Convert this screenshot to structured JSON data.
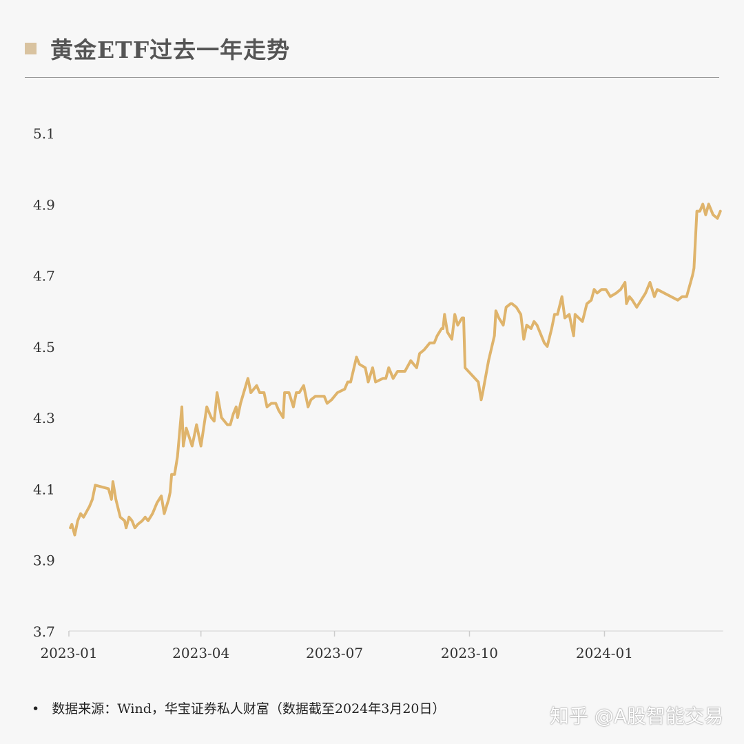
{
  "title": "黄金ETF过去一年走势",
  "footnote": "数据来源：Wind，华宝证券私人财富（数据截至2024年3月20日）",
  "watermark": "知乎 @A股智能交易",
  "colors": {
    "line": "#dfb46c",
    "title_mark": "#d9c3a0",
    "background": "#f7f7f7"
  },
  "chart_data": {
    "type": "line",
    "title": "黄金ETF过去一年走势",
    "xlabel": "",
    "ylabel": "",
    "ylim": [
      3.7,
      5.1
    ],
    "yticks": [
      "3.7",
      "3.9",
      "4.1",
      "4.3",
      "4.5",
      "4.7",
      "4.9",
      "5.1"
    ],
    "xticks": [
      "2023-01",
      "2023-04",
      "2023-07",
      "2023-10",
      "2024-01"
    ],
    "xlim": [
      "2023-01-01",
      "2024-03-20"
    ],
    "grid": false,
    "series": [
      {
        "x": [
          "2023-01-02",
          "2023-01-03",
          "2023-01-05",
          "2023-01-07",
          "2023-01-09",
          "2023-01-11",
          "2023-01-15",
          "2023-01-17",
          "2023-01-19",
          "2023-01-28",
          "2023-01-30",
          "2023-01-31",
          "2023-02-02",
          "2023-02-05",
          "2023-02-08",
          "2023-02-09",
          "2023-02-11",
          "2023-02-13",
          "2023-02-15",
          "2023-02-17",
          "2023-02-20",
          "2023-02-22",
          "2023-02-24",
          "2023-02-27",
          "2023-03-02",
          "2023-03-05",
          "2023-03-07",
          "2023-03-10",
          "2023-03-11",
          "2023-03-12",
          "2023-03-14",
          "2023-03-16",
          "2023-03-19",
          "2023-03-20",
          "2023-03-22",
          "2023-03-26",
          "2023-03-29",
          "2023-04-01",
          "2023-04-05",
          "2023-04-08",
          "2023-04-10",
          "2023-04-12",
          "2023-04-15",
          "2023-04-19",
          "2023-04-21",
          "2023-04-23",
          "2023-04-25",
          "2023-04-26",
          "2023-04-28",
          "2023-05-03",
          "2023-05-05",
          "2023-05-09",
          "2023-05-11",
          "2023-05-14",
          "2023-05-16",
          "2023-05-19",
          "2023-05-22",
          "2023-05-24",
          "2023-05-27",
          "2023-05-28",
          "2023-05-31",
          "2023-06-03",
          "2023-06-05",
          "2023-06-07",
          "2023-06-10",
          "2023-06-13",
          "2023-06-15",
          "2023-06-18",
          "2023-06-24",
          "2023-06-26",
          "2023-06-29",
          "2023-07-03",
          "2023-07-08",
          "2023-07-10",
          "2023-07-12",
          "2023-07-16",
          "2023-07-18",
          "2023-07-22",
          "2023-07-24",
          "2023-07-27",
          "2023-07-29",
          "2023-08-03",
          "2023-08-05",
          "2023-08-07",
          "2023-08-10",
          "2023-08-13",
          "2023-08-18",
          "2023-08-22",
          "2023-08-24",
          "2023-08-26",
          "2023-08-28",
          "2023-08-31",
          "2023-09-04",
          "2023-09-07",
          "2023-09-09",
          "2023-09-12",
          "2023-09-13",
          "2023-09-14",
          "2023-09-16",
          "2023-09-19",
          "2023-09-21",
          "2023-09-23",
          "2023-09-26",
          "2023-09-27",
          "2023-09-28",
          "2023-10-07",
          "2023-10-09",
          "2023-10-10",
          "2023-10-14",
          "2023-10-18",
          "2023-10-19",
          "2023-10-21",
          "2023-10-24",
          "2023-10-26",
          "2023-10-29",
          "2023-10-30",
          "2023-11-02",
          "2023-11-05",
          "2023-11-07",
          "2023-11-09",
          "2023-11-12",
          "2023-11-14",
          "2023-11-16",
          "2023-11-21",
          "2023-11-23",
          "2023-11-26",
          "2023-11-28",
          "2023-11-30",
          "2023-12-03",
          "2023-12-05",
          "2023-12-08",
          "2023-12-11",
          "2023-12-12",
          "2023-12-17",
          "2023-12-20",
          "2023-12-23",
          "2023-12-25",
          "2023-12-27",
          "2023-12-30",
          "2024-01-02",
          "2024-01-05",
          "2024-01-09",
          "2024-01-12",
          "2024-01-15",
          "2024-01-16",
          "2024-01-18",
          "2024-01-20",
          "2024-01-23",
          "2024-01-26",
          "2024-01-29",
          "2024-02-01",
          "2024-02-04",
          "2024-02-06",
          "2024-02-20",
          "2024-02-23",
          "2024-02-26",
          "2024-03-01",
          "2024-03-02",
          "2024-03-04",
          "2024-03-06",
          "2024-03-08",
          "2024-03-10",
          "2024-03-12",
          "2024-03-15",
          "2024-03-18",
          "2024-03-20"
        ],
        "y": [
          3.99,
          4.0,
          3.97,
          4.01,
          4.03,
          4.02,
          4.05,
          4.07,
          4.11,
          4.1,
          4.07,
          4.12,
          4.07,
          4.02,
          4.01,
          3.99,
          4.02,
          4.01,
          3.99,
          4.0,
          4.01,
          4.02,
          4.01,
          4.03,
          4.06,
          4.08,
          4.03,
          4.07,
          4.09,
          4.14,
          4.14,
          4.19,
          4.33,
          4.22,
          4.27,
          4.22,
          4.28,
          4.22,
          4.33,
          4.3,
          4.29,
          4.37,
          4.3,
          4.28,
          4.28,
          4.31,
          4.33,
          4.3,
          4.34,
          4.41,
          4.37,
          4.39,
          4.37,
          4.37,
          4.33,
          4.34,
          4.34,
          4.32,
          4.3,
          4.37,
          4.37,
          4.33,
          4.37,
          4.37,
          4.39,
          4.33,
          4.35,
          4.36,
          4.36,
          4.34,
          4.35,
          4.37,
          4.38,
          4.4,
          4.4,
          4.47,
          4.45,
          4.44,
          4.4,
          4.44,
          4.4,
          4.41,
          4.41,
          4.44,
          4.41,
          4.43,
          4.43,
          4.46,
          4.45,
          4.44,
          4.48,
          4.49,
          4.51,
          4.51,
          4.53,
          4.55,
          4.55,
          4.59,
          4.54,
          4.52,
          4.59,
          4.56,
          4.58,
          4.58,
          4.44,
          4.4,
          4.35,
          4.37,
          4.46,
          4.53,
          4.6,
          4.58,
          4.56,
          4.61,
          4.62,
          4.62,
          4.61,
          4.59,
          4.52,
          4.56,
          4.55,
          4.57,
          4.56,
          4.51,
          4.5,
          4.55,
          4.59,
          4.59,
          4.64,
          4.58,
          4.59,
          4.53,
          4.59,
          4.57,
          4.62,
          4.63,
          4.66,
          4.65,
          4.66,
          4.66,
          4.64,
          4.65,
          4.66,
          4.68,
          4.62,
          4.64,
          4.63,
          4.61,
          4.63,
          4.65,
          4.68,
          4.64,
          4.66,
          4.63,
          4.64,
          4.64,
          4.7,
          4.72,
          4.88,
          4.88,
          4.9,
          4.87,
          4.9,
          4.87,
          4.86,
          4.88
        ]
      }
    ]
  }
}
